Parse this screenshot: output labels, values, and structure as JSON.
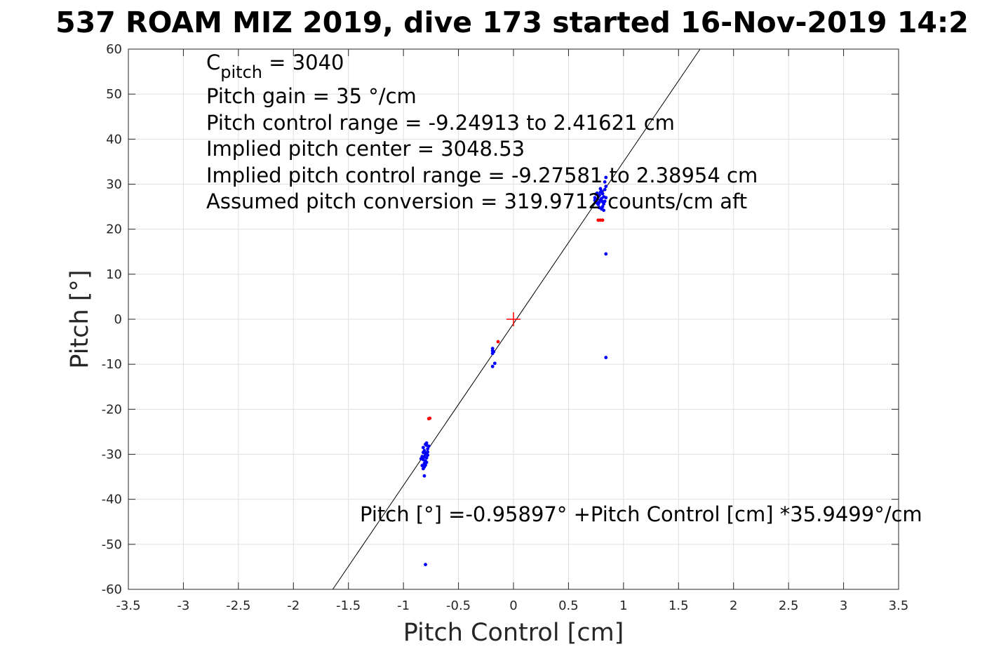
{
  "chart_data": {
    "type": "scatter",
    "title": "537 ROAM MIZ 2019, dive 173 started 16-Nov-2019 14:2",
    "xlabel": "Pitch Control [cm]",
    "ylabel": "Pitch [°]",
    "xlim": [
      -3.5,
      3.5
    ],
    "ylim": [
      -60,
      60
    ],
    "x_ticks": [
      -3.5,
      -3,
      -2.5,
      -2,
      -1.5,
      -1,
      -0.5,
      0,
      0.5,
      1,
      1.5,
      2,
      2.5,
      3,
      3.5
    ],
    "y_ticks": [
      -60,
      -50,
      -40,
      -30,
      -20,
      -10,
      0,
      10,
      20,
      30,
      40,
      50,
      60
    ],
    "grid": true,
    "annotations": {
      "c_pitch_symbol": "C",
      "c_pitch_subscript": "pitch",
      "c_pitch_value": " = 3040",
      "pitch_gain": "Pitch gain = 35 °/cm",
      "pitch_control_range": "Pitch control range = -9.24913 to 2.41621 cm",
      "implied_pitch_center": "Implied pitch center = 3048.53",
      "implied_pitch_control_range": "Implied pitch control range = -9.27581 to 2.38954 cm",
      "assumed_pitch_conversion": "Assumed pitch conversion = 319.9712 counts/cm aft",
      "fit_equation": "Pitch [°] =-0.95897° +Pitch Control [cm] *35.9499°/cm"
    },
    "fit_line": {
      "intercept": -0.95897,
      "slope": 35.9499
    },
    "center_marker": {
      "x": 0,
      "y": 0,
      "color": "#ff0000"
    },
    "series": [
      {
        "color": "#0000ff",
        "points": [
          [
            -0.82,
            -28.5
          ],
          [
            -0.81,
            -29.2
          ],
          [
            -0.8,
            -30.0
          ],
          [
            -0.79,
            -28.0
          ],
          [
            -0.78,
            -29.5
          ],
          [
            -0.77,
            -28.2
          ],
          [
            -0.83,
            -30.5
          ],
          [
            -0.82,
            -31.2
          ],
          [
            -0.81,
            -32.0
          ],
          [
            -0.8,
            -31.5
          ],
          [
            -0.79,
            -30.8
          ],
          [
            -0.78,
            -30.2
          ],
          [
            -0.84,
            -31.0
          ],
          [
            -0.83,
            -32.5
          ],
          [
            -0.82,
            -33.2
          ],
          [
            -0.81,
            -32.8
          ],
          [
            -0.8,
            -29.8
          ],
          [
            -0.79,
            -31.8
          ],
          [
            -0.8,
            -27.8
          ],
          [
            -0.79,
            -27.5
          ],
          [
            -0.78,
            -28.8
          ],
          [
            -0.81,
            -30.6
          ],
          [
            -0.82,
            -29.6
          ],
          [
            -0.8,
            -32.4
          ],
          [
            -0.81,
            -34.8
          ],
          [
            -0.8,
            -54.5
          ],
          [
            -0.19,
            -6.5
          ],
          [
            -0.19,
            -7.0
          ],
          [
            -0.19,
            -7.6
          ],
          [
            -0.18,
            -7.2
          ],
          [
            -0.19,
            -10.5
          ],
          [
            -0.17,
            -9.8
          ],
          [
            0.74,
            27.0
          ],
          [
            0.75,
            26.0
          ],
          [
            0.76,
            28.0
          ],
          [
            0.77,
            25.5
          ],
          [
            0.78,
            27.5
          ],
          [
            0.79,
            26.5
          ],
          [
            0.8,
            28.5
          ],
          [
            0.81,
            25.0
          ],
          [
            0.82,
            27.2
          ],
          [
            0.83,
            26.2
          ],
          [
            0.75,
            27.8
          ],
          [
            0.76,
            25.8
          ],
          [
            0.77,
            27.6
          ],
          [
            0.78,
            24.8
          ],
          [
            0.79,
            28.2
          ],
          [
            0.8,
            26.8
          ],
          [
            0.81,
            27.9
          ],
          [
            0.82,
            25.6
          ],
          [
            0.83,
            28.8
          ],
          [
            0.74,
            26.4
          ],
          [
            0.78,
            26.0
          ],
          [
            0.8,
            24.5
          ],
          [
            0.82,
            24.2
          ],
          [
            0.84,
            27.0
          ],
          [
            0.84,
            29.5
          ],
          [
            0.83,
            30.5
          ],
          [
            0.84,
            31.5
          ],
          [
            0.79,
            29.0
          ],
          [
            0.76,
            26.6
          ],
          [
            0.81,
            26.1
          ],
          [
            0.84,
            14.5
          ],
          [
            0.84,
            -8.5
          ]
        ]
      },
      {
        "color": "#ff0000",
        "points": [
          [
            0.77,
            22.0
          ],
          [
            0.79,
            22.0
          ],
          [
            0.81,
            22.0
          ],
          [
            -0.76,
            -22.0
          ],
          [
            -0.77,
            -22.1
          ],
          [
            -0.14,
            -5.0
          ]
        ]
      }
    ]
  }
}
